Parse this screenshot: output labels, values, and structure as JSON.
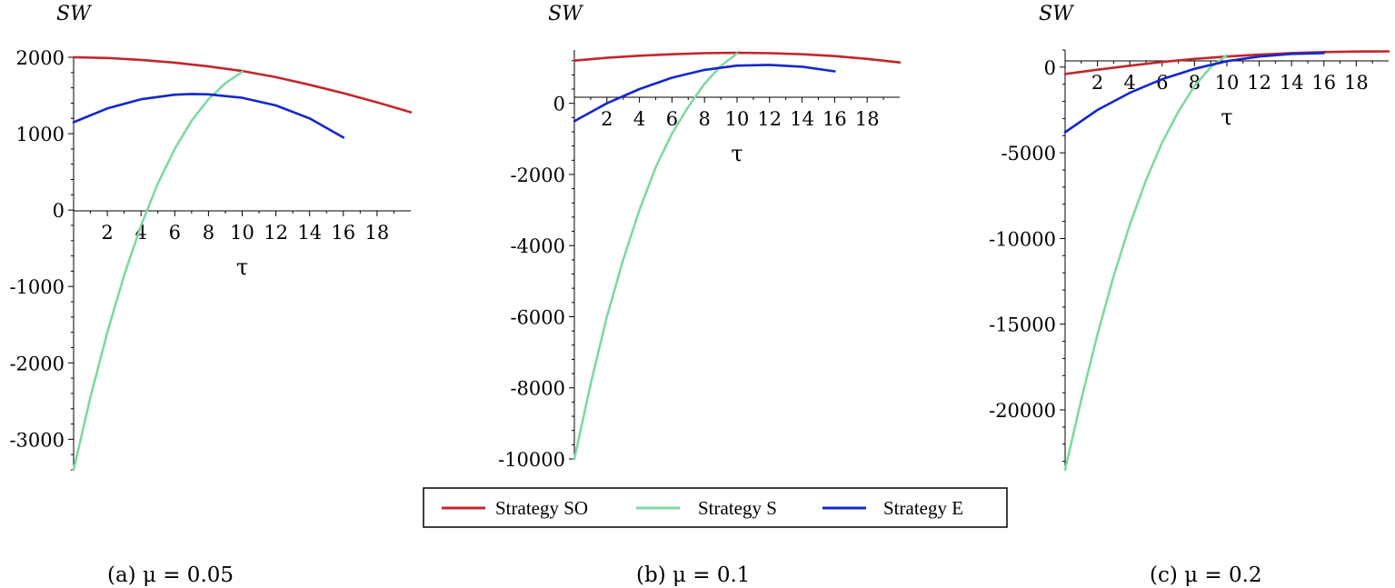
{
  "legend": {
    "entries": [
      {
        "label": "Strategy SO",
        "color": "#c0282d"
      },
      {
        "label": "Strategy S",
        "color": "#7fd8a4"
      },
      {
        "label": "Strategy E",
        "color": "#1428c8"
      }
    ]
  },
  "chart_data": [
    {
      "type": "line",
      "caption": "(a)  μ = 0.05",
      "ylabel": "SW",
      "xlabel": "τ",
      "xlim": [
        0,
        20
      ],
      "ylim": [
        -3400,
        2000
      ],
      "xticks": [
        2,
        4,
        6,
        8,
        10,
        12,
        14,
        16,
        18
      ],
      "yticks": [
        -3000,
        -2000,
        -1000,
        0,
        1000,
        2000
      ],
      "series": [
        {
          "name": "Strategy SO",
          "color": "#c0282d",
          "x": [
            0,
            2,
            4,
            6,
            8,
            10,
            12,
            14,
            16,
            18,
            20
          ],
          "y": [
            2000,
            1990,
            1965,
            1930,
            1880,
            1820,
            1740,
            1640,
            1530,
            1410,
            1280
          ]
        },
        {
          "name": "Strategy S",
          "color": "#7fd8a4",
          "x": [
            0,
            1,
            2,
            3,
            4,
            5,
            6,
            7,
            8,
            9,
            10
          ],
          "y": [
            -3400,
            -2450,
            -1600,
            -850,
            -200,
            350,
            800,
            1170,
            1450,
            1660,
            1810
          ]
        },
        {
          "name": "Strategy E",
          "color": "#1428c8",
          "x": [
            0,
            2,
            4,
            6,
            7,
            8,
            10,
            12,
            14,
            16
          ],
          "y": [
            1150,
            1330,
            1450,
            1510,
            1520,
            1515,
            1470,
            1370,
            1200,
            950
          ]
        }
      ]
    },
    {
      "type": "line",
      "caption": "(b)  μ = 0.1",
      "ylabel": "SW",
      "xlabel": "τ",
      "xlim": [
        0,
        20
      ],
      "ylim": [
        -10000,
        1500
      ],
      "xticks": [
        2,
        4,
        6,
        8,
        10,
        12,
        14,
        16,
        18
      ],
      "yticks": [
        -10000,
        -8000,
        -6000,
        -4000,
        -2000,
        0
      ],
      "series": [
        {
          "name": "Strategy SO",
          "color": "#c0282d",
          "x": [
            0,
            2,
            4,
            6,
            8,
            10,
            12,
            14,
            16,
            18,
            20
          ],
          "y": [
            1200,
            1280,
            1340,
            1380,
            1410,
            1420,
            1410,
            1380,
            1330,
            1250,
            1150
          ]
        },
        {
          "name": "Strategy S",
          "color": "#7fd8a4",
          "x": [
            0,
            1,
            2,
            3,
            4,
            5,
            6,
            7,
            8,
            9,
            10
          ],
          "y": [
            -10000,
            -7900,
            -6000,
            -4400,
            -3000,
            -1800,
            -850,
            -100,
            550,
            1050,
            1400
          ]
        },
        {
          "name": "Strategy E",
          "color": "#1428c8",
          "x": [
            0,
            2,
            4,
            6,
            8,
            10,
            12,
            14,
            16
          ],
          "y": [
            -500,
            0,
            400,
            720,
            940,
            1060,
            1080,
            1030,
            900
          ]
        }
      ]
    },
    {
      "type": "line",
      "caption": "(c)  μ = 0.2",
      "ylabel": "SW",
      "xlabel": "τ",
      "xlim": [
        0,
        20
      ],
      "ylim": [
        -23500,
        1000
      ],
      "xticks": [
        2,
        4,
        6,
        8,
        10,
        12,
        14,
        16,
        18
      ],
      "yticks": [
        -20000,
        -15000,
        -10000,
        -5000,
        0
      ],
      "series": [
        {
          "name": "Strategy SO",
          "color": "#c0282d",
          "x": [
            0,
            2,
            4,
            6,
            8,
            10,
            12,
            14,
            16,
            18,
            20
          ],
          "y": [
            -400,
            -150,
            80,
            300,
            480,
            620,
            730,
            820,
            880,
            910,
            920
          ]
        },
        {
          "name": "Strategy S",
          "color": "#7fd8a4",
          "x": [
            0,
            1,
            2,
            3,
            4,
            5,
            6,
            7,
            8,
            9,
            10
          ],
          "y": [
            -23500,
            -19400,
            -15600,
            -12200,
            -9200,
            -6600,
            -4400,
            -2600,
            -1100,
            0,
            700
          ]
        },
        {
          "name": "Strategy E",
          "color": "#1428c8",
          "x": [
            0,
            2,
            4,
            6,
            8,
            10,
            12,
            14,
            16
          ],
          "y": [
            -3800,
            -2500,
            -1500,
            -700,
            -100,
            350,
            620,
            770,
            820
          ]
        }
      ]
    }
  ]
}
